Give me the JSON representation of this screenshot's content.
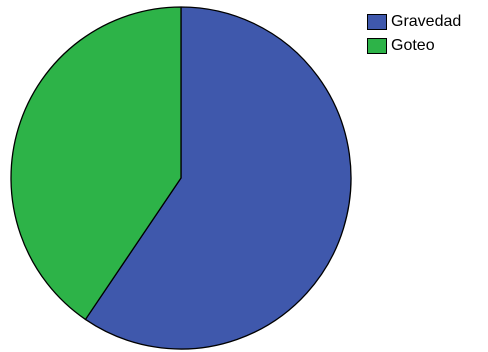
{
  "chart_data": {
    "type": "pie",
    "title": "",
    "slices": [
      {
        "label": "Gravedad",
        "value": 59.5,
        "color": "#3F58AC"
      },
      {
        "label": "Goteo",
        "value": 40.5,
        "color": "#2DB348"
      }
    ],
    "start_angle_deg": 0,
    "direction": "clockwise",
    "legend_placement": "top-right",
    "outline_color": "#000000"
  }
}
